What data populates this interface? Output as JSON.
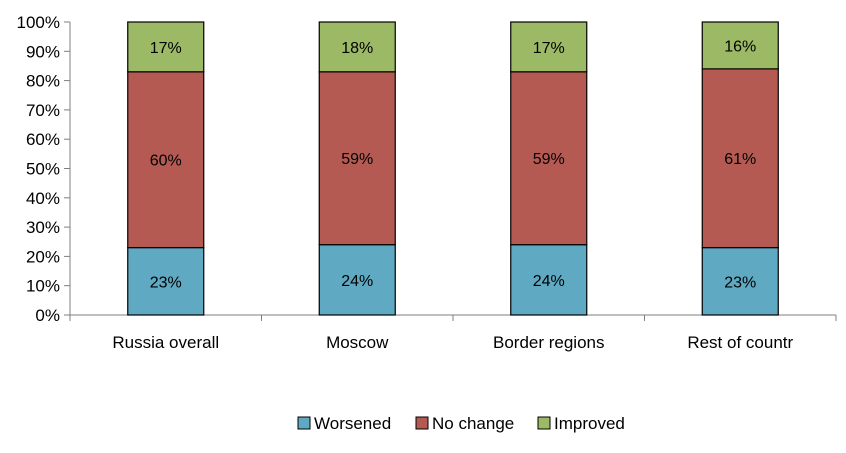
{
  "chart_data": {
    "type": "bar",
    "stacked": true,
    "title": "",
    "xlabel": "",
    "ylabel": "",
    "categories": [
      "Russia overall",
      "Moscow",
      "Border regions",
      "Rest of countr"
    ],
    "series": [
      {
        "name": "Worsened",
        "color": "#5fa9c3",
        "values": [
          23,
          24,
          24,
          23
        ],
        "labels": [
          "23%",
          "24%",
          "24%",
          "23%"
        ]
      },
      {
        "name": "No change",
        "color": "#b55a52",
        "values": [
          60,
          59,
          59,
          61
        ],
        "labels": [
          "60%",
          "59%",
          "59%",
          "61%"
        ]
      },
      {
        "name": "Improved",
        "color": "#9cba65",
        "values": [
          17,
          18,
          17,
          16
        ],
        "labels": [
          "17%",
          "18%",
          "17%",
          "16%"
        ]
      }
    ],
    "ylim": [
      0,
      100
    ],
    "yticks": [
      "0%",
      "10%",
      "20%",
      "30%",
      "40%",
      "50%",
      "60%",
      "70%",
      "80%",
      "90%",
      "100%"
    ],
    "grid": false,
    "legend_position": "bottom"
  }
}
